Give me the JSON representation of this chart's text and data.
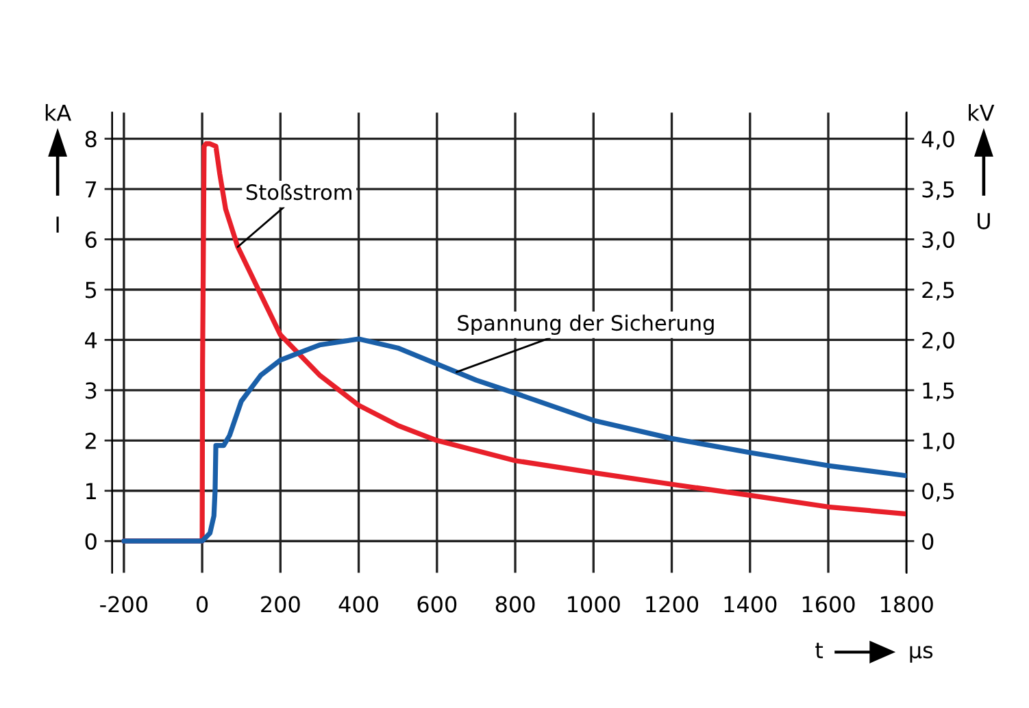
{
  "chart_data": {
    "type": "line",
    "xlabel": "t",
    "ylabel": "I",
    "y2label": "U",
    "x": [
      -200,
      -100,
      0,
      1,
      5,
      10,
      20,
      35,
      45,
      60,
      91,
      150,
      200,
      300,
      400,
      500,
      600,
      700,
      800,
      1000,
      1200,
      1400,
      1600,
      1800
    ],
    "series": [
      {
        "name": "Stoßstrom",
        "color": "#e8202a",
        "values": [
          0,
          0,
          0,
          3.5,
          7.85,
          7.9,
          7.9,
          7.85,
          7.3,
          6.6,
          5.85,
          4.9,
          4.1,
          3.3,
          2.7,
          2.3,
          2.0,
          1.8,
          1.6,
          1.36,
          1.13,
          0.91,
          0.68,
          0.54
        ]
      },
      {
        "name": "Spannung der Sicherung",
        "color": "#1a5fa8",
        "axis": "y2",
        "x": [
          -200,
          0,
          20,
          30,
          33,
          35,
          55,
          70,
          100,
          150,
          200,
          300,
          400,
          500,
          600,
          700,
          800,
          1000,
          1200,
          1400,
          1600,
          1800
        ],
        "values": [
          0,
          0,
          0.08,
          0.25,
          0.5,
          0.95,
          0.95,
          1.05,
          1.39,
          1.65,
          1.8,
          1.95,
          2.01,
          1.92,
          1.76,
          1.6,
          1.47,
          1.2,
          1.02,
          0.88,
          0.75,
          0.65
        ]
      }
    ],
    "xlim": [
      -230,
      1800
    ],
    "ylim": [
      -0.63,
      8.52
    ],
    "y2lim": [
      -0.315,
      4.26
    ],
    "xticks": [
      -200,
      0,
      200,
      400,
      600,
      800,
      1000,
      1200,
      1400,
      1600,
      1800
    ],
    "yticks": [
      0,
      1,
      2,
      3,
      4,
      5,
      6,
      7,
      8
    ],
    "y2ticks": [
      0,
      {
        "value": 0.5,
        "label": "0,5"
      },
      {
        "value": 1.0,
        "label": "1,0"
      },
      {
        "value": 1.5,
        "label": "1,5"
      },
      {
        "value": 2.0,
        "label": "2,0"
      },
      {
        "value": 2.5,
        "label": "2,5"
      },
      {
        "value": 3.0,
        "label": "3,0"
      },
      {
        "value": 3.5,
        "label": "3,5"
      },
      {
        "value": 4.0,
        "label": "4,0"
      }
    ],
    "grid": true,
    "legend": false,
    "marker": "none",
    "line_style": "solid",
    "annotations": [
      "kA",
      "kV",
      "µs"
    ]
  }
}
